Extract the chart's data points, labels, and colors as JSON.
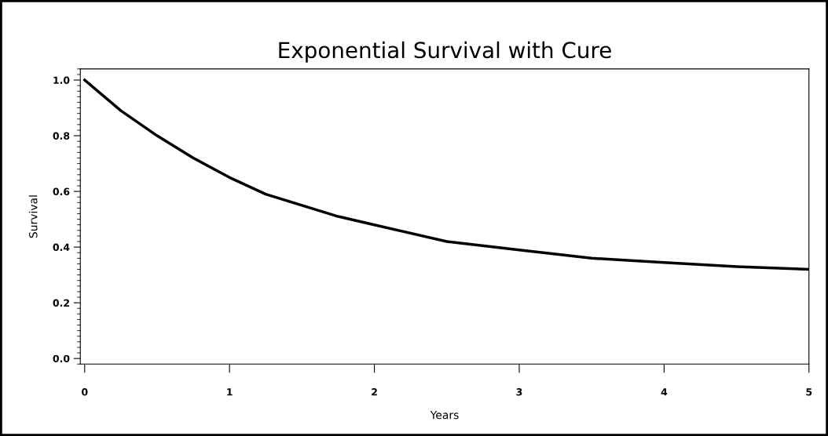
{
  "chart_data": {
    "type": "line",
    "title": "Exponential Survival with Cure",
    "xlabel": "Years",
    "ylabel": "Survival",
    "x": [
      0,
      0.25,
      0.5,
      0.75,
      1,
      1.25,
      1.5,
      1.75,
      2,
      2.5,
      3,
      3.5,
      4,
      4.5,
      5
    ],
    "series": [
      {
        "color": "#000000",
        "values": [
          1.0,
          0.89,
          0.8,
          0.72,
          0.65,
          0.59,
          0.55,
          0.51,
          0.48,
          0.42,
          0.39,
          0.36,
          0.345,
          0.33,
          0.32
        ]
      }
    ],
    "xlim": [
      -0.03,
      5
    ],
    "ylim": [
      -0.02,
      1.04
    ],
    "xticks": [
      0,
      1,
      2,
      3,
      4,
      5
    ],
    "yticks": [
      {
        "value": 0,
        "label": "0.0"
      },
      {
        "value": 0.2,
        "label": "0.2"
      },
      {
        "value": 0.4,
        "label": "0.4"
      },
      {
        "value": 0.6,
        "label": "0.6"
      },
      {
        "value": 0.8,
        "label": "0.8"
      },
      {
        "value": 1,
        "label": "1.0"
      }
    ],
    "grid": false,
    "legend": false,
    "marker": "none",
    "line_style": "solid"
  }
}
